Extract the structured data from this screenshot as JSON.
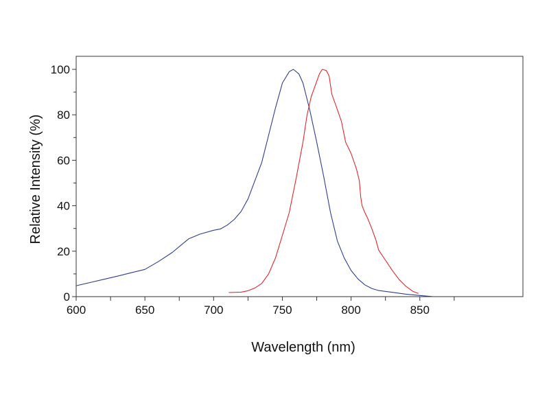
{
  "chart_data": {
    "type": "line",
    "xlabel": "Wavelength (nm)",
    "ylabel": "Relative Intensity (%)",
    "xlim": [
      600,
      925
    ],
    "ylim": [
      0,
      100
    ],
    "x_ticks": [
      600,
      650,
      700,
      750,
      800,
      850
    ],
    "x_minor_ticks": [
      625,
      675,
      725,
      775,
      825,
      875
    ],
    "y_ticks": [
      0,
      20,
      40,
      60,
      80,
      100
    ],
    "y_minor_ticks": [
      10,
      30,
      50,
      70,
      90
    ],
    "grid": false,
    "legend": "none",
    "series": [
      {
        "color": "#2e3d8f",
        "points": [
          [
            600,
            4.8
          ],
          [
            610,
            6.2
          ],
          [
            620,
            7.6
          ],
          [
            630,
            9.0
          ],
          [
            640,
            10.5
          ],
          [
            650,
            12.0
          ],
          [
            660,
            15.5
          ],
          [
            670,
            19.5
          ],
          [
            678,
            23.5
          ],
          [
            682,
            25.5
          ],
          [
            690,
            27.5
          ],
          [
            700,
            29.2
          ],
          [
            705,
            29.8
          ],
          [
            710,
            31.5
          ],
          [
            715,
            34
          ],
          [
            720,
            37.5
          ],
          [
            725,
            43
          ],
          [
            730,
            51
          ],
          [
            735,
            59
          ],
          [
            740,
            71
          ],
          [
            745,
            83
          ],
          [
            750,
            94
          ],
          [
            755,
            99
          ],
          [
            758,
            100
          ],
          [
            762,
            98
          ],
          [
            765,
            94
          ],
          [
            770,
            82
          ],
          [
            775,
            68
          ],
          [
            780,
            53
          ],
          [
            785,
            37
          ],
          [
            790,
            24.5
          ],
          [
            795,
            17
          ],
          [
            800,
            11.5
          ],
          [
            805,
            7.8
          ],
          [
            810,
            5.2
          ],
          [
            815,
            3.6
          ],
          [
            820,
            2.7
          ],
          [
            830,
            1.9
          ],
          [
            840,
            1.1
          ],
          [
            850,
            0.5
          ],
          [
            860,
            0
          ]
        ]
      },
      {
        "color": "#e0262b",
        "points": [
          [
            711,
            1.8
          ],
          [
            720,
            2.0
          ],
          [
            725,
            2.6
          ],
          [
            730,
            3.8
          ],
          [
            735,
            5.8
          ],
          [
            740,
            10
          ],
          [
            745,
            17
          ],
          [
            750,
            27
          ],
          [
            755,
            37
          ],
          [
            760,
            52
          ],
          [
            765,
            68
          ],
          [
            768,
            80
          ],
          [
            771,
            88
          ],
          [
            774,
            93
          ],
          [
            777,
            98
          ],
          [
            779,
            100
          ],
          [
            782,
            99.5
          ],
          [
            784,
            97
          ],
          [
            786,
            89
          ],
          [
            789,
            84
          ],
          [
            793,
            77
          ],
          [
            796,
            68
          ],
          [
            800,
            63
          ],
          [
            804,
            56
          ],
          [
            806,
            51
          ],
          [
            807,
            44
          ],
          [
            808,
            40
          ],
          [
            810,
            37
          ],
          [
            812,
            34.5
          ],
          [
            815,
            30
          ],
          [
            818,
            25
          ],
          [
            820,
            20.5
          ],
          [
            825,
            16
          ],
          [
            830,
            11.5
          ],
          [
            835,
            7.5
          ],
          [
            840,
            4.5
          ],
          [
            845,
            2.3
          ],
          [
            849,
            1.4
          ]
        ]
      }
    ]
  }
}
